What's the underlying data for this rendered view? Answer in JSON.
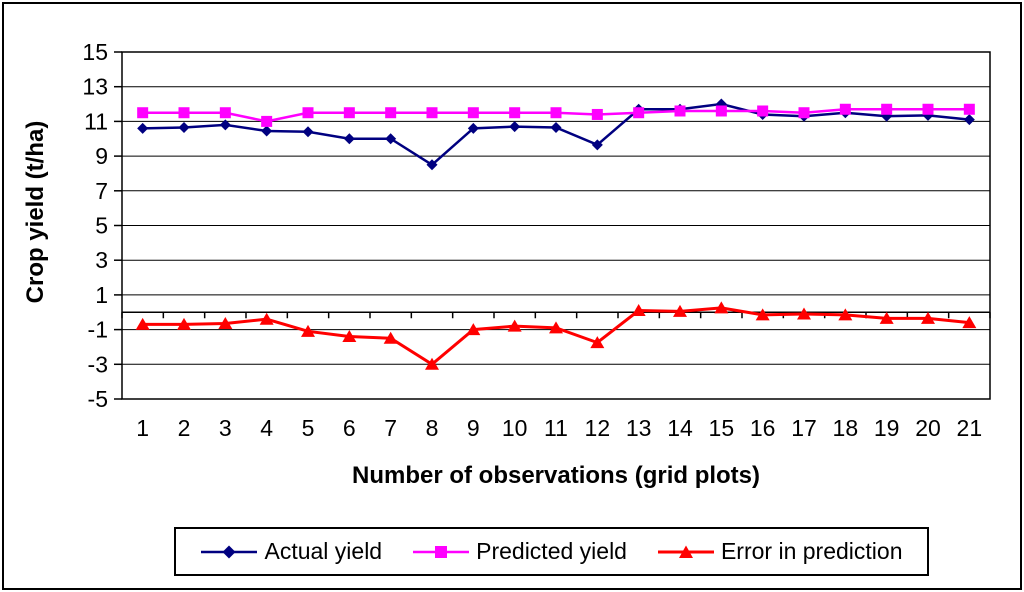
{
  "figure": {
    "background": "#ffffff",
    "frame_color": "#000000"
  },
  "chart_data": {
    "type": "line",
    "title": "",
    "xlabel": "Number of observations (grid plots)",
    "ylabel": "Crop yield (t/ha)",
    "x_categories": [
      1,
      2,
      3,
      4,
      5,
      6,
      7,
      8,
      9,
      10,
      11,
      12,
      13,
      14,
      15,
      16,
      17,
      18,
      19,
      20,
      21
    ],
    "ylim": [
      -5,
      15
    ],
    "ytick_step": 2,
    "ytick_labels": [
      "15",
      "13",
      "11",
      "9",
      "7",
      "5",
      "3",
      "1",
      "-1",
      "-3",
      "-5"
    ],
    "grid": true,
    "gridline_color": "#000000",
    "legend_position": "bottom",
    "series": [
      {
        "name": "Actual yield",
        "color": "#000080",
        "marker": "diamond",
        "values": [
          10.6,
          10.65,
          10.8,
          10.45,
          10.4,
          10.0,
          10.0,
          8.5,
          10.6,
          10.7,
          10.65,
          9.65,
          11.7,
          11.7,
          12.0,
          11.4,
          11.3,
          11.5,
          11.3,
          11.35,
          11.1
        ]
      },
      {
        "name": "Predicted yield",
        "color": "#FF00FF",
        "marker": "square",
        "values": [
          11.5,
          11.5,
          11.5,
          11.0,
          11.5,
          11.5,
          11.5,
          11.5,
          11.5,
          11.5,
          11.5,
          11.4,
          11.5,
          11.6,
          11.6,
          11.6,
          11.5,
          11.7,
          11.7,
          11.7,
          11.7
        ]
      },
      {
        "name": "Error in prediction",
        "color": "#FF0000",
        "marker": "triangle",
        "values": [
          -0.7,
          -0.7,
          -0.65,
          -0.4,
          -1.1,
          -1.4,
          -1.5,
          -3.0,
          -1.0,
          -0.8,
          -0.9,
          -1.75,
          0.1,
          0.05,
          0.25,
          -0.15,
          -0.1,
          -0.15,
          -0.35,
          -0.35,
          -0.6
        ]
      }
    ]
  }
}
